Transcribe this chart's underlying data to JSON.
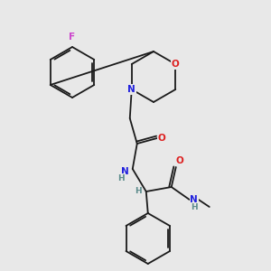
{
  "bg_color": "#e8e8e8",
  "bond_color": "#1a1a1a",
  "atom_colors": {
    "N": "#2020dd",
    "O": "#dd2020",
    "F": "#cc44cc",
    "H": "#5a8a8a",
    "C": "#1a1a1a"
  },
  "font_size_atom": 7.5,
  "font_size_small": 6.5,
  "line_width": 1.3
}
